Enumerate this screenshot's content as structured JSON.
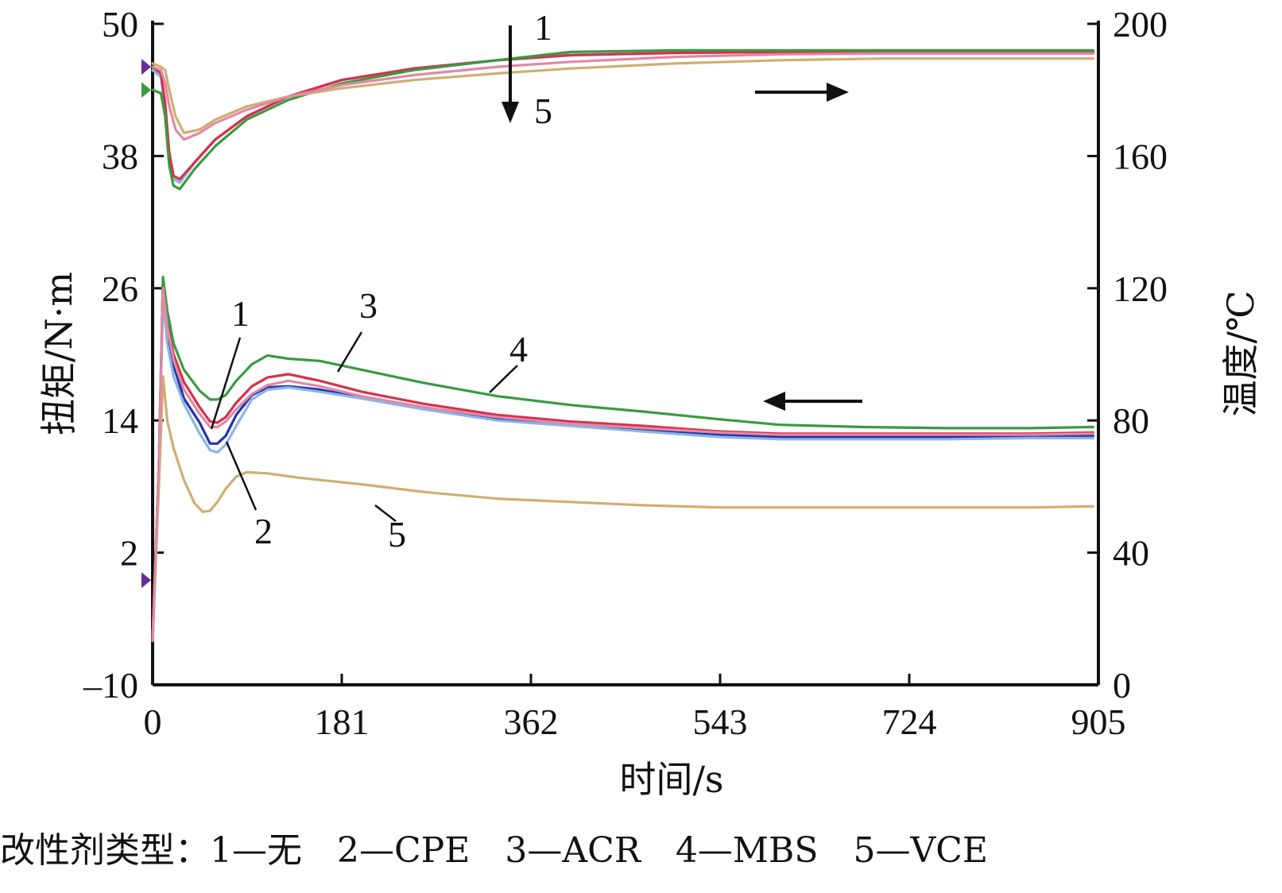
{
  "chart_data": {
    "type": "line",
    "xlabel": "时间/s",
    "ylabel_left": "扭矩/N·m",
    "ylabel_right": "温度/℃",
    "x_ticks": [
      "0",
      "181",
      "362",
      "543",
      "724",
      "905"
    ],
    "y_left_ticks": [
      "–10",
      "2",
      "14",
      "26",
      "38",
      "50"
    ],
    "y_right_ticks": [
      "0",
      "40",
      "80",
      "120",
      "160",
      "200"
    ],
    "xlim": [
      0,
      905
    ],
    "ylim_left": [
      -10,
      50
    ],
    "ylim_right": [
      0,
      200
    ],
    "grid": false,
    "colors": {
      "1": "#2233aa",
      "2": "#8ab4e8",
      "3": "#d8304a",
      "4": "#3a9a40",
      "5": "#cfae72",
      "pink": "#e089a6"
    },
    "torque_series": [
      {
        "id": "1",
        "color": "#2233aa",
        "x": [
          0,
          6,
          10,
          14,
          20,
          30,
          45,
          55,
          62,
          70,
          80,
          95,
          110,
          130,
          160,
          200,
          260,
          330,
          400,
          470,
          543,
          600,
          680,
          760,
          840,
          900
        ],
        "y": [
          -6,
          10,
          26,
          22,
          19,
          16,
          13.8,
          11.9,
          11.9,
          12.6,
          14.5,
          16.3,
          17,
          17.1,
          16.8,
          16.1,
          15.2,
          14.2,
          13.6,
          13.2,
          12.7,
          12.5,
          12.5,
          12.5,
          12.5,
          12.6
        ]
      },
      {
        "id": "2",
        "color": "#8ab4e8",
        "x": [
          0,
          6,
          10,
          14,
          20,
          30,
          45,
          55,
          62,
          70,
          80,
          95,
          110,
          130,
          160,
          200,
          260,
          330,
          400,
          470,
          543,
          600,
          680,
          760,
          840,
          900
        ],
        "y": [
          -6,
          10,
          25,
          21,
          18,
          15.5,
          12.8,
          11.3,
          11.1,
          11.8,
          13.5,
          15.9,
          16.8,
          17,
          16.6,
          16,
          15,
          14,
          13.5,
          13,
          12.5,
          12.3,
          12.3,
          12.3,
          12.4,
          12.4
        ]
      },
      {
        "id": "3",
        "color": "#d8304a",
        "x": [
          0,
          6,
          10,
          14,
          20,
          30,
          45,
          55,
          62,
          70,
          80,
          95,
          110,
          130,
          160,
          200,
          260,
          330,
          400,
          470,
          543,
          600,
          680,
          760,
          840,
          900
        ],
        "y": [
          -6,
          10,
          27,
          23,
          20,
          17.5,
          15.2,
          13.9,
          13.8,
          14.3,
          15.6,
          17.1,
          17.9,
          18.2,
          17.6,
          16.6,
          15.5,
          14.5,
          13.9,
          13.5,
          13,
          12.8,
          12.8,
          12.8,
          12.8,
          12.9
        ]
      },
      {
        "id": "4",
        "color": "#3a9a40",
        "x": [
          0,
          6,
          10,
          14,
          20,
          30,
          45,
          55,
          62,
          70,
          80,
          95,
          110,
          130,
          160,
          200,
          260,
          330,
          400,
          470,
          543,
          600,
          680,
          760,
          840,
          900
        ],
        "y": [
          -6,
          10,
          27,
          24,
          21,
          18.6,
          16.7,
          15.9,
          15.9,
          16.3,
          17.6,
          19.1,
          19.9,
          19.6,
          19.4,
          18.6,
          17.4,
          16.2,
          15.4,
          14.8,
          14.1,
          13.6,
          13.4,
          13.3,
          13.3,
          13.4
        ]
      },
      {
        "id": "5",
        "color": "#cfae72",
        "x": [
          0,
          6,
          10,
          14,
          20,
          30,
          40,
          48,
          55,
          62,
          70,
          80,
          90,
          110,
          140,
          200,
          260,
          330,
          400,
          470,
          543,
          600,
          680,
          760,
          840,
          900
        ],
        "y": [
          -6,
          8,
          18,
          14,
          11.5,
          8.6,
          6.5,
          5.7,
          5.8,
          6.6,
          7.8,
          8.9,
          9.3,
          9.2,
          8.8,
          8.2,
          7.5,
          6.9,
          6.6,
          6.3,
          6.1,
          6.1,
          6.1,
          6.1,
          6.1,
          6.2
        ]
      },
      {
        "id": "pink",
        "color": "#e089a6",
        "x": [
          0,
          6,
          10,
          14,
          20,
          30,
          45,
          55,
          62,
          70,
          80,
          95,
          110,
          130,
          160,
          200,
          260,
          330,
          400,
          470,
          543,
          600,
          680,
          760,
          840,
          900
        ],
        "y": [
          -6,
          10,
          26,
          22.5,
          19.5,
          16.8,
          14.6,
          13.4,
          13.4,
          13.9,
          15,
          16.4,
          17.2,
          17.6,
          17.1,
          16.2,
          15.2,
          14.3,
          13.7,
          13.3,
          12.9,
          12.7,
          12.7,
          12.7,
          12.7,
          12.8
        ]
      }
    ],
    "temperature_series": [
      {
        "id": "1",
        "color": "#2233aa",
        "x": [
          0,
          8,
          12,
          16,
          20,
          26,
          40,
          60,
          90,
          130,
          181,
          250,
          330,
          400,
          500,
          600,
          700,
          800,
          900
        ],
        "y": [
          186,
          184,
          175,
          160,
          153,
          152,
          158,
          165,
          172,
          178,
          183,
          186.5,
          189,
          190.6,
          191.3,
          191.5,
          191.5,
          191.5,
          191.5
        ]
      },
      {
        "id": "2",
        "color": "#8ab4e8",
        "x": [
          0,
          8,
          12,
          16,
          20,
          26,
          40,
          60,
          90,
          130,
          181,
          250,
          330,
          400,
          500,
          600,
          700,
          800,
          900
        ],
        "y": [
          186,
          184,
          175,
          160,
          153,
          152,
          158,
          165,
          172,
          178,
          183,
          186.5,
          189,
          190.6,
          191.3,
          191.5,
          191.5,
          191.5,
          191.5
        ]
      },
      {
        "id": "3",
        "color": "#d8304a",
        "x": [
          0,
          8,
          12,
          16,
          20,
          26,
          40,
          60,
          90,
          130,
          181,
          250,
          330,
          400,
          500,
          600,
          700,
          800,
          900
        ],
        "y": [
          187,
          185,
          176,
          161,
          154,
          153,
          158,
          165,
          172,
          178,
          183,
          186.5,
          189,
          190.5,
          191.2,
          191.5,
          191.5,
          191.5,
          191.5
        ]
      },
      {
        "id": "4",
        "color": "#3a9a40",
        "x": [
          0,
          8,
          12,
          16,
          20,
          26,
          40,
          60,
          90,
          130,
          181,
          250,
          330,
          400,
          500,
          600,
          700,
          800,
          900
        ],
        "y": [
          180,
          179,
          172,
          157,
          151,
          150,
          156,
          163,
          171,
          177,
          182,
          186,
          189,
          191.5,
          192,
          192,
          192,
          192,
          192
        ]
      },
      {
        "id": "5",
        "color": "#cfae72",
        "x": [
          0,
          8,
          12,
          16,
          22,
          30,
          45,
          60,
          90,
          130,
          181,
          250,
          330,
          400,
          500,
          600,
          700,
          800,
          900
        ],
        "y": [
          188,
          187,
          186,
          180,
          172,
          167,
          168,
          171,
          175,
          178,
          180.5,
          183,
          185,
          186.5,
          188,
          189,
          189.5,
          189.5,
          189.5
        ]
      },
      {
        "id": "pink",
        "color": "#e089a6",
        "x": [
          0,
          8,
          12,
          16,
          22,
          30,
          45,
          60,
          90,
          130,
          181,
          250,
          330,
          400,
          500,
          600,
          700,
          800,
          900
        ],
        "y": [
          187,
          186,
          182,
          175,
          168,
          165,
          167,
          170,
          174,
          178,
          181.5,
          184.5,
          187,
          188.5,
          190,
          190.8,
          191,
          191,
          191
        ]
      }
    ],
    "annotations": {
      "temp_high": "1",
      "temp_low": "5",
      "torque_1": "1",
      "torque_2": "2",
      "torque_3": "3",
      "torque_4": "4",
      "torque_5": "5"
    }
  },
  "caption": "改性剂类型：1—无　2—CPE　3—ACR　4—MBS　5—VCE"
}
